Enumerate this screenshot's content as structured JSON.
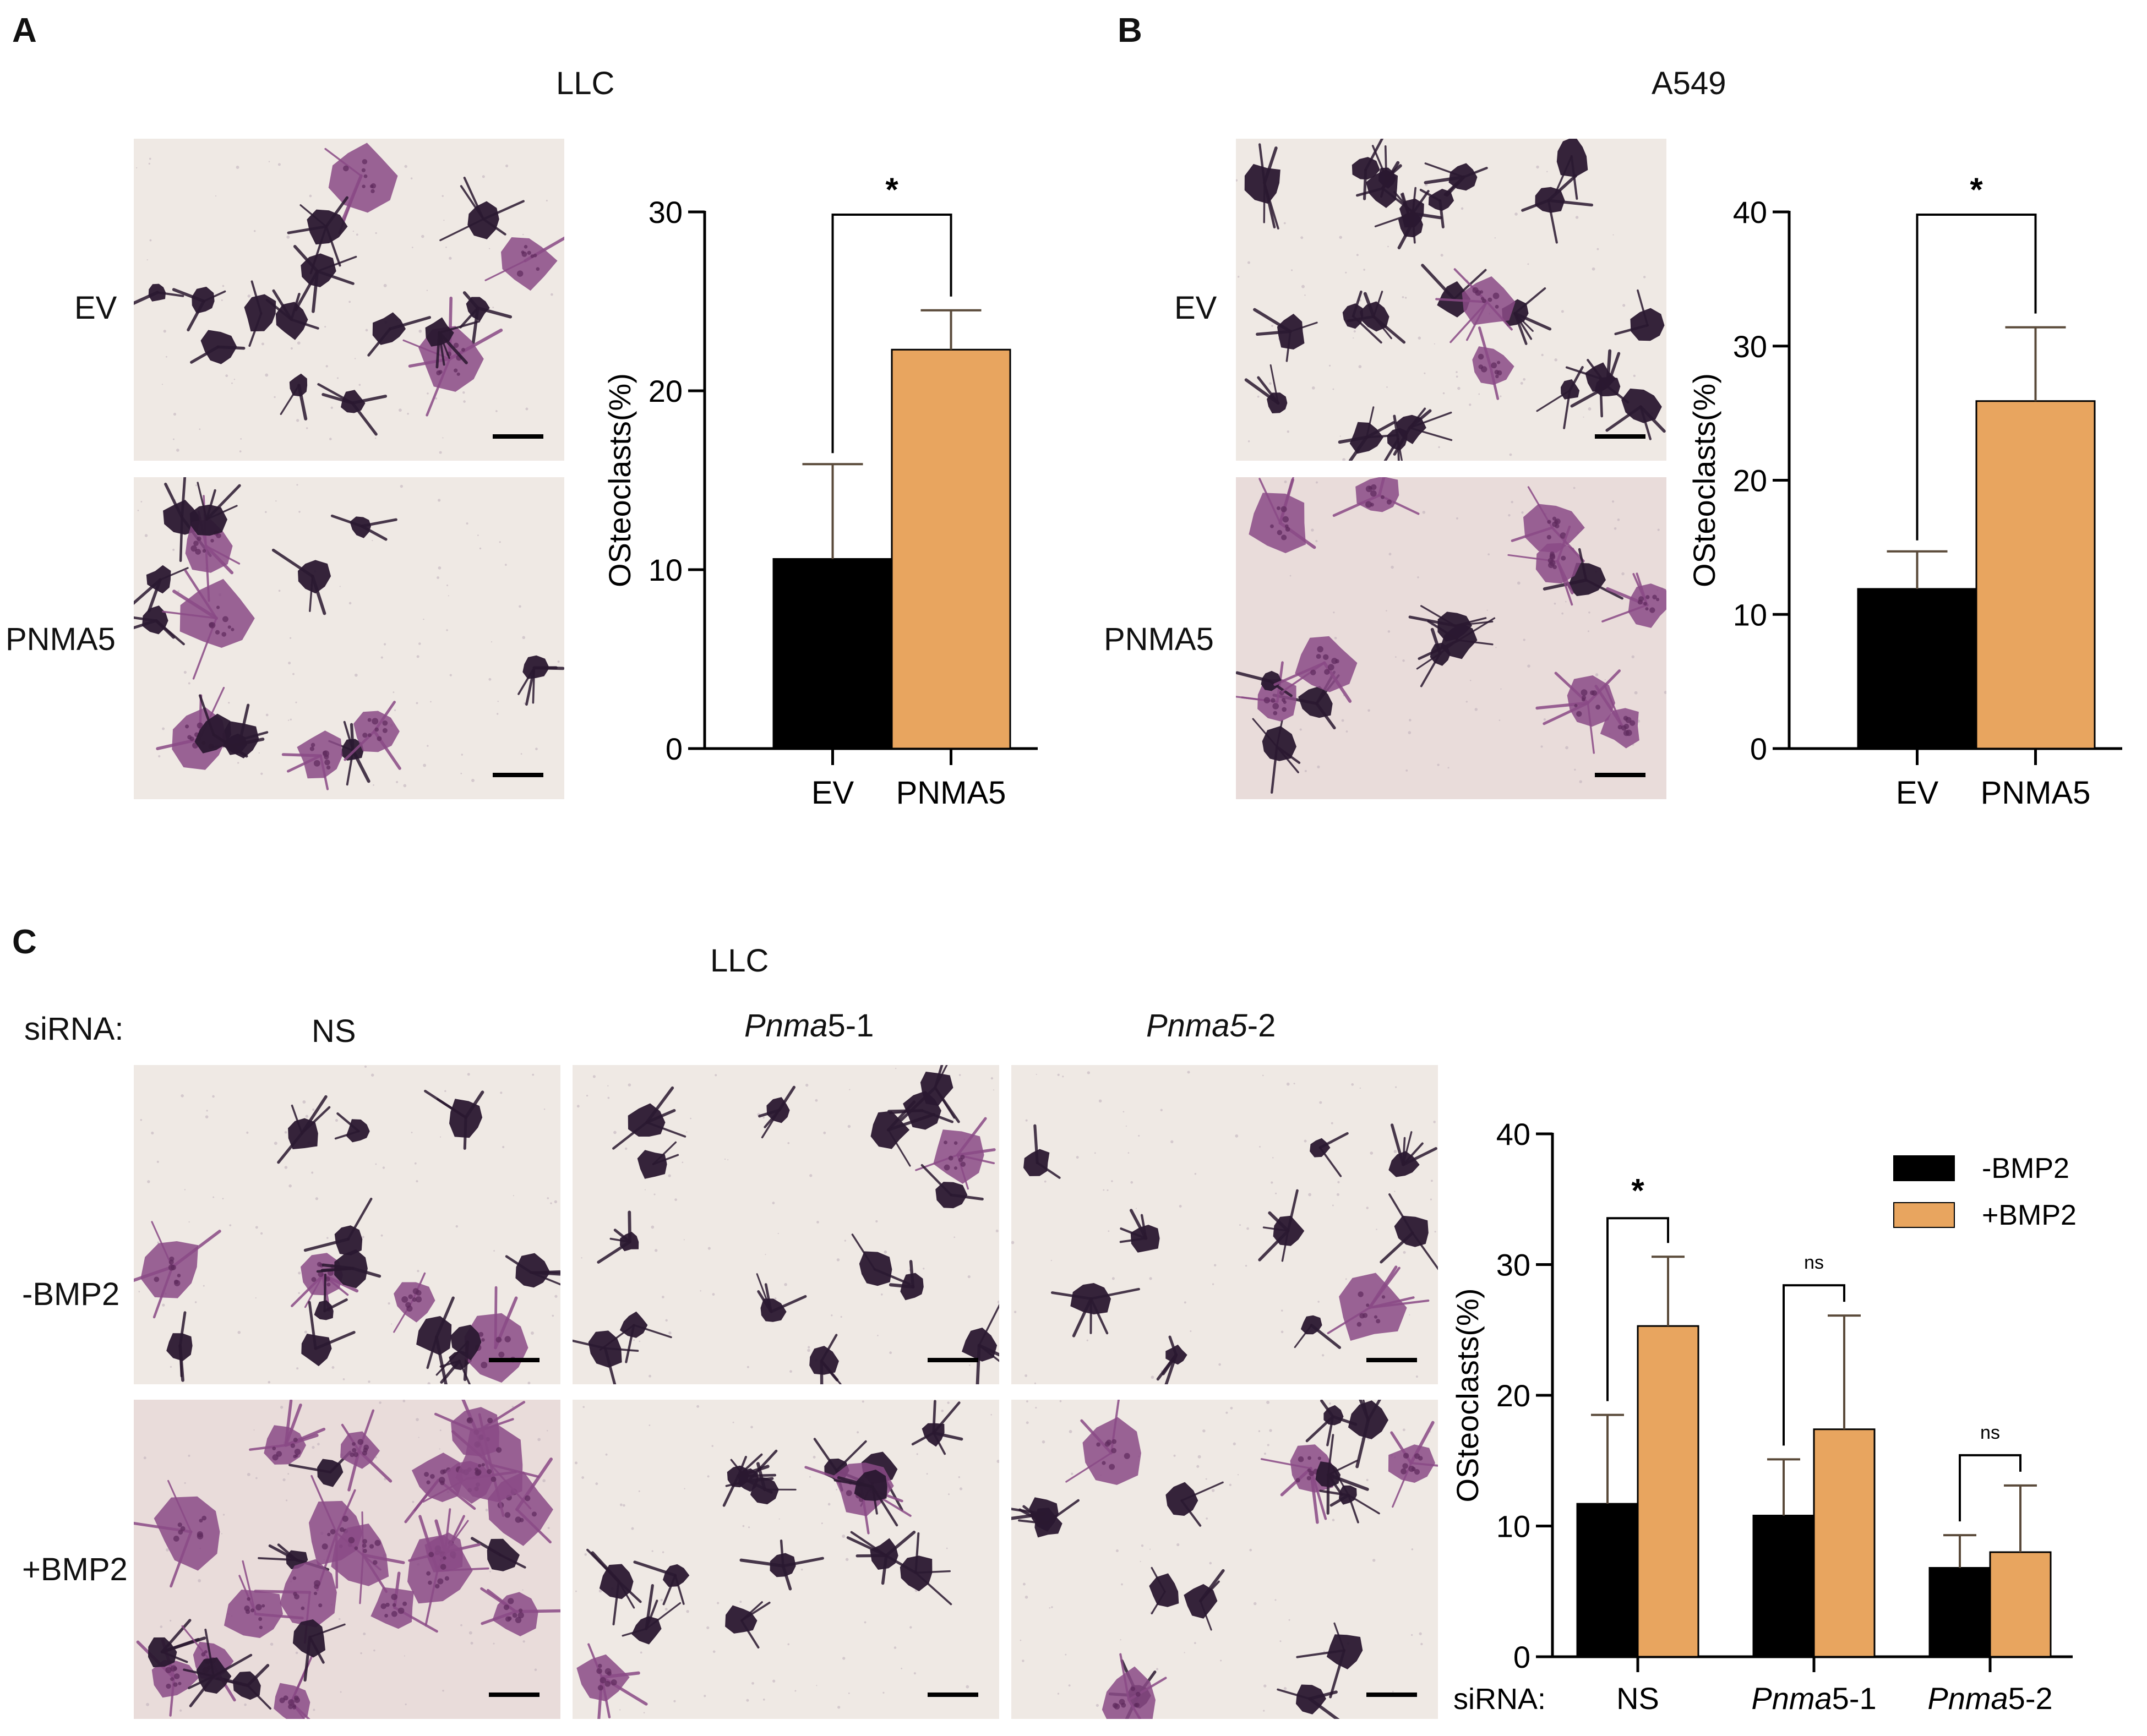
{
  "panels": {
    "A": {
      "label": "A",
      "title": "LLC",
      "rows": [
        "EV",
        "PNMA5"
      ]
    },
    "B": {
      "label": "B",
      "title": "A549",
      "rows": [
        "EV",
        "PNMA5"
      ]
    },
    "C": {
      "label": "C",
      "title": "LLC",
      "sirna_label": "siRNA:",
      "columns": [
        {
          "italic": "Pnma",
          "plain": "",
          "full": "NS",
          "is_ns": true
        },
        {
          "italic": "Pnma",
          "plain": "5-1",
          "full": "Pnma5-1",
          "is_ns": false
        },
        {
          "italic": "Pnma5",
          "plain": "-2",
          "full": "Pnma5-2",
          "is_ns": false
        }
      ],
      "rows": [
        "-BMP2",
        "+BMP2"
      ]
    }
  },
  "colors": {
    "black_bar": "#000000",
    "orange_bar": "#E8A55F",
    "error_bar": "#5a4a3a",
    "micro_bg_light": "#efe9e4",
    "micro_bg_pink": "#e9dcda",
    "cell_dark": "#2a1830",
    "cell_purple": "#8a4a86"
  },
  "chart_data": [
    {
      "id": "A",
      "type": "bar",
      "categories": [
        "EV",
        "PNMA5"
      ],
      "values": [
        10.6,
        22.3
      ],
      "errors": [
        5.3,
        2.2
      ],
      "colors": [
        "#000000",
        "#E8A55F"
      ],
      "ylabel": "OSteoclasts(%)",
      "ylim": [
        0,
        30
      ],
      "yticks": [
        0,
        10,
        20,
        30
      ],
      "significance": [
        {
          "between": [
            0,
            1
          ],
          "label": "*"
        }
      ],
      "grid": false,
      "legend": "none"
    },
    {
      "id": "B",
      "type": "bar",
      "categories": [
        "EV",
        "PNMA5"
      ],
      "values": [
        11.9,
        25.9
      ],
      "errors": [
        2.8,
        5.5
      ],
      "colors": [
        "#000000",
        "#E8A55F"
      ],
      "ylabel": "OSteoclasts(%)",
      "ylim": [
        0,
        40
      ],
      "yticks": [
        0,
        10,
        20,
        30,
        40
      ],
      "significance": [
        {
          "between": [
            0,
            1
          ],
          "label": "*"
        }
      ],
      "grid": false,
      "legend": "none"
    },
    {
      "id": "C",
      "type": "bar",
      "categories": [
        "NS",
        "Pnma5-1",
        "Pnma5-2"
      ],
      "category_prefix": "siRNA:",
      "series": [
        {
          "name": "-BMP2",
          "values": [
            11.7,
            10.8,
            6.8
          ],
          "errors": [
            6.8,
            4.3,
            2.5
          ],
          "color": "#000000"
        },
        {
          "name": "+BMP2",
          "values": [
            25.3,
            17.4,
            8.0
          ],
          "errors": [
            5.3,
            8.7,
            5.1
          ],
          "color": "#E8A55F"
        }
      ],
      "ylabel": "OSteoclasts(%)",
      "ylim": [
        0,
        40
      ],
      "yticks": [
        0,
        10,
        20,
        30,
        40
      ],
      "significance": [
        {
          "group": 0,
          "label": "*"
        },
        {
          "group": 1,
          "label": "ns"
        },
        {
          "group": 2,
          "label": "ns"
        }
      ],
      "grid": false,
      "legend": "top-right"
    }
  ]
}
